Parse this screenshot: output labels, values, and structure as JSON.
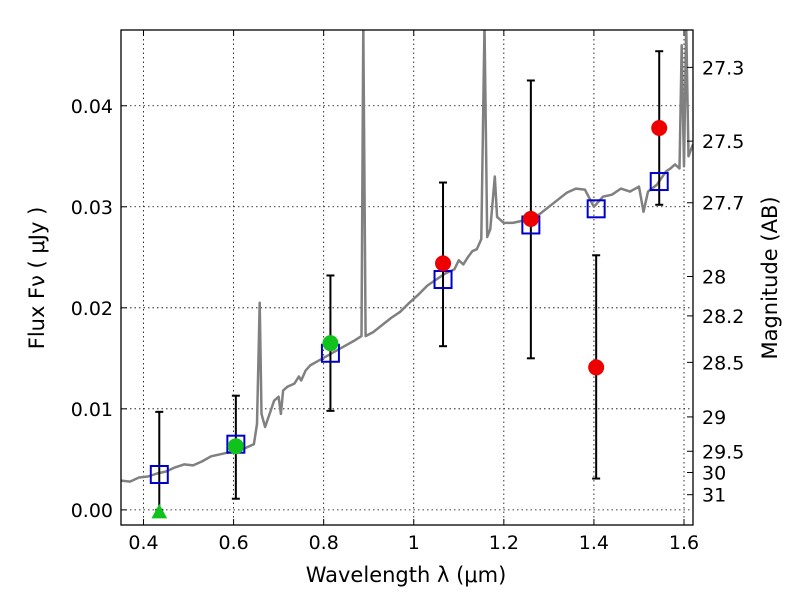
{
  "chart_data": {
    "type": "scatter",
    "xlabel": "Wavelength  λ (μm)",
    "ylabel": "Flux  Fν  ( μJy )",
    "ylabel_right": "Magnitude (AB)",
    "xlim": [
      0.35,
      1.62
    ],
    "ylim": [
      -0.0015,
      0.0475
    ],
    "grid": true,
    "x_ticks": [
      0.4,
      0.6,
      0.8,
      1.0,
      1.2,
      1.4,
      1.6
    ],
    "x_tick_labels": [
      "0.4",
      "0.6",
      "0.8",
      "1",
      "1.2",
      "1.4",
      "1.6"
    ],
    "y_ticks": [
      0.0,
      0.01,
      0.02,
      0.03,
      0.04
    ],
    "y_tick_labels": [
      "0.00",
      "0.01",
      "0.02",
      "0.03",
      "0.04"
    ],
    "right_ticks": [
      {
        "label": "27.3",
        "flux": 0.0438
      },
      {
        "label": "27.5",
        "flux": 0.0365
      },
      {
        "label": "27.7",
        "flux": 0.0304
      },
      {
        "label": "28",
        "flux": 0.0231
      },
      {
        "label": "28.2",
        "flux": 0.0192
      },
      {
        "label": "28.5",
        "flux": 0.0146
      },
      {
        "label": "29",
        "flux": 0.0092
      },
      {
        "label": "29.5",
        "flux": 0.0058
      },
      {
        "label": "30",
        "flux": 0.0037
      },
      {
        "label": "31",
        "flux": 0.0015
      }
    ],
    "series": [
      {
        "kind": "line",
        "color": "#808080",
        "points": [
          [
            0.35,
            0.0029
          ],
          [
            0.37,
            0.0028
          ],
          [
            0.39,
            0.0032
          ],
          [
            0.41,
            0.0033
          ],
          [
            0.43,
            0.0036
          ],
          [
            0.45,
            0.0038
          ],
          [
            0.47,
            0.0042
          ],
          [
            0.49,
            0.0045
          ],
          [
            0.51,
            0.0044
          ],
          [
            0.53,
            0.0048
          ],
          [
            0.55,
            0.0053
          ],
          [
            0.57,
            0.0055
          ],
          [
            0.59,
            0.0057
          ],
          [
            0.61,
            0.0058
          ],
          [
            0.63,
            0.0062
          ],
          [
            0.645,
            0.0065
          ],
          [
            0.652,
            0.0085
          ],
          [
            0.658,
            0.0205
          ],
          [
            0.662,
            0.0095
          ],
          [
            0.67,
            0.0082
          ],
          [
            0.68,
            0.0095
          ],
          [
            0.69,
            0.0108
          ],
          [
            0.7,
            0.0112
          ],
          [
            0.705,
            0.0095
          ],
          [
            0.71,
            0.0118
          ],
          [
            0.72,
            0.0122
          ],
          [
            0.735,
            0.0125
          ],
          [
            0.745,
            0.0132
          ],
          [
            0.75,
            0.0128
          ],
          [
            0.76,
            0.0138
          ],
          [
            0.77,
            0.0143
          ],
          [
            0.79,
            0.0148
          ],
          [
            0.81,
            0.0153
          ],
          [
            0.83,
            0.0158
          ],
          [
            0.85,
            0.0163
          ],
          [
            0.87,
            0.0168
          ],
          [
            0.884,
            0.0172
          ],
          [
            0.888,
            0.048
          ],
          [
            0.893,
            0.0172
          ],
          [
            0.91,
            0.0176
          ],
          [
            0.93,
            0.0183
          ],
          [
            0.95,
            0.019
          ],
          [
            0.97,
            0.0196
          ],
          [
            0.99,
            0.0205
          ],
          [
            1.01,
            0.0213
          ],
          [
            1.03,
            0.0222
          ],
          [
            1.05,
            0.0228
          ],
          [
            1.07,
            0.0234
          ],
          [
            1.09,
            0.0238
          ],
          [
            1.1,
            0.0247
          ],
          [
            1.11,
            0.0243
          ],
          [
            1.12,
            0.025
          ],
          [
            1.13,
            0.0256
          ],
          [
            1.14,
            0.0258
          ],
          [
            1.15,
            0.0268
          ],
          [
            1.157,
            0.048
          ],
          [
            1.163,
            0.027
          ],
          [
            1.17,
            0.0278
          ],
          [
            1.18,
            0.033
          ],
          [
            1.185,
            0.029
          ],
          [
            1.2,
            0.0284
          ],
          [
            1.22,
            0.0284
          ],
          [
            1.24,
            0.0286
          ],
          [
            1.26,
            0.0288
          ],
          [
            1.28,
            0.0293
          ],
          [
            1.3,
            0.03
          ],
          [
            1.32,
            0.0307
          ],
          [
            1.34,
            0.0314
          ],
          [
            1.36,
            0.0318
          ],
          [
            1.38,
            0.0317
          ],
          [
            1.4,
            0.03
          ],
          [
            1.42,
            0.031
          ],
          [
            1.44,
            0.0312
          ],
          [
            1.46,
            0.0318
          ],
          [
            1.48,
            0.0315
          ],
          [
            1.5,
            0.032
          ],
          [
            1.51,
            0.0295
          ],
          [
            1.52,
            0.0315
          ],
          [
            1.54,
            0.0322
          ],
          [
            1.56,
            0.0335
          ],
          [
            1.57,
            0.0338
          ],
          [
            1.58,
            0.0342
          ],
          [
            1.59,
            0.0338
          ],
          [
            1.595,
            0.046
          ],
          [
            1.6,
            0.034
          ],
          [
            1.605,
            0.048
          ],
          [
            1.61,
            0.035
          ],
          [
            1.62,
            0.0362
          ]
        ]
      },
      {
        "kind": "errorbars",
        "color": "#000000",
        "bars": [
          {
            "x": 0.435,
            "low": 0.0,
            "high": 0.0097
          },
          {
            "x": 0.605,
            "low": 0.0011,
            "high": 0.0113
          },
          {
            "x": 0.815,
            "low": 0.0098,
            "high": 0.0232
          },
          {
            "x": 1.065,
            "low": 0.0162,
            "high": 0.0324
          },
          {
            "x": 1.26,
            "low": 0.015,
            "high": 0.0425
          },
          {
            "x": 1.405,
            "low": 0.0031,
            "high": 0.0252
          },
          {
            "x": 1.545,
            "low": 0.0302,
            "high": 0.0454
          }
        ]
      },
      {
        "kind": "square",
        "color": "#0000cc",
        "points": [
          [
            0.435,
            0.0035
          ],
          [
            0.605,
            0.0065
          ],
          [
            0.815,
            0.0155
          ],
          [
            1.065,
            0.0228
          ],
          [
            1.26,
            0.0282
          ],
          [
            1.405,
            0.0298
          ],
          [
            1.545,
            0.0325
          ]
        ]
      },
      {
        "kind": "circle",
        "color": "#11c21c",
        "points": [
          [
            0.605,
            0.0063
          ],
          [
            0.815,
            0.0165
          ]
        ]
      },
      {
        "kind": "triangle",
        "color": "#11c21c",
        "points": [
          [
            0.435,
            -0.0002
          ]
        ]
      },
      {
        "kind": "circle",
        "color": "#ee0000",
        "points": [
          [
            1.065,
            0.0244
          ],
          [
            1.26,
            0.0288
          ],
          [
            1.405,
            0.0141
          ],
          [
            1.545,
            0.0378
          ]
        ]
      }
    ]
  }
}
